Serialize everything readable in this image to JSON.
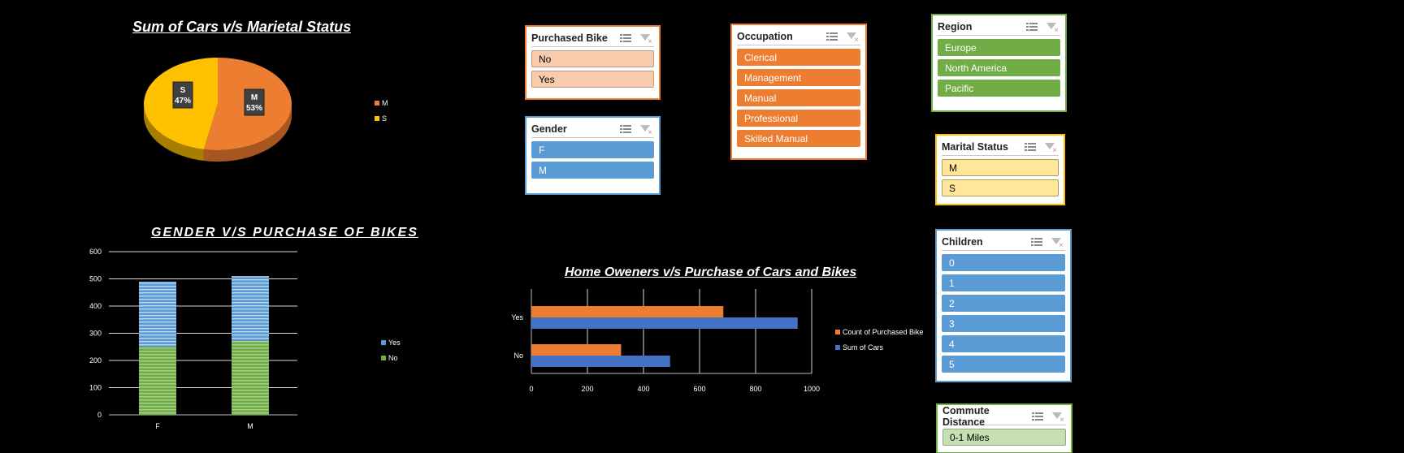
{
  "chart_data": [
    {
      "type": "pie",
      "title": "Sum of Cars v/s Marietal Status",
      "slices": [
        {
          "label": "M",
          "value": 53,
          "color": "#ED7D31"
        },
        {
          "label": "S",
          "value": 47,
          "color": "#FFC000"
        }
      ],
      "data_labels": [
        {
          "name": "M",
          "pct": "53%"
        },
        {
          "name": "S",
          "pct": "47%"
        }
      ],
      "legend": [
        "M",
        "S"
      ],
      "legend_position": "right"
    },
    {
      "type": "bar",
      "stacked": true,
      "title": "GENDER V/S PURCHASE OF BIKES",
      "categories": [
        "F",
        "M"
      ],
      "series": [
        {
          "name": "No",
          "values": [
            250,
            270
          ],
          "color": "#70AD47"
        },
        {
          "name": "Yes",
          "values": [
            240,
            240
          ],
          "color": "#5B9BD5"
        }
      ],
      "ylim": [
        0,
        600
      ],
      "yticks": [
        "0",
        "100",
        "200",
        "300",
        "400",
        "500",
        "600"
      ],
      "legend": [
        "Yes",
        "No"
      ],
      "legend_position": "right",
      "grid": true
    },
    {
      "type": "bar",
      "orientation": "horizontal",
      "title": "Home Oweners v/s Purchase of Cars and Bikes",
      "categories": [
        "No",
        "Yes"
      ],
      "series": [
        {
          "name": "Count of Purchased Bike",
          "values": [
            320,
            685
          ],
          "color": "#ED7D31"
        },
        {
          "name": "Sum of Cars",
          "values": [
            495,
            950
          ],
          "color": "#4472C4"
        }
      ],
      "xlim": [
        0,
        1000
      ],
      "xticks": [
        "0",
        "200",
        "400",
        "600",
        "800",
        "1000"
      ],
      "legend_position": "right",
      "grid": true
    }
  ],
  "slicers": [
    {
      "title": "Purchased Bike",
      "border": "#ED7D31",
      "fill": "#F8CBAD",
      "text": "#000",
      "itemBorder": "#B89A86",
      "items": [
        "No",
        "Yes"
      ]
    },
    {
      "title": "Gender",
      "border": "#5B9BD5",
      "fill": "#5B9BD5",
      "text": "#fff",
      "itemBorder": "#5B9BD5",
      "items": [
        "F",
        "M"
      ]
    },
    {
      "title": "Occupation",
      "border": "#ED7D31",
      "fill": "#ED7D31",
      "text": "#fff",
      "itemBorder": "#ED7D31",
      "items": [
        "Clerical",
        "Management",
        "Manual",
        "Professional",
        "Skilled Manual"
      ]
    },
    {
      "title": "Region",
      "border": "#70AD47",
      "fill": "#70AD47",
      "text": "#fff",
      "itemBorder": "#70AD47",
      "items": [
        "Europe",
        "North America",
        "Pacific"
      ]
    },
    {
      "title": "Marital Status",
      "border": "#FFC000",
      "fill": "#FFE699",
      "text": "#000",
      "itemBorder": "#A89A60",
      "items": [
        "M",
        "S"
      ]
    },
    {
      "title": "Children",
      "border": "#5B9BD5",
      "fill": "#5B9BD5",
      "text": "#fff",
      "itemBorder": "#5B9BD5",
      "items": [
        "0",
        "1",
        "2",
        "3",
        "4",
        "5"
      ]
    },
    {
      "title": "Commute Distance",
      "border": "#70AD47",
      "fill": "#C6E0B4",
      "text": "#000",
      "itemBorder": "#8FA980",
      "items": [
        "0-1 Miles"
      ]
    }
  ]
}
